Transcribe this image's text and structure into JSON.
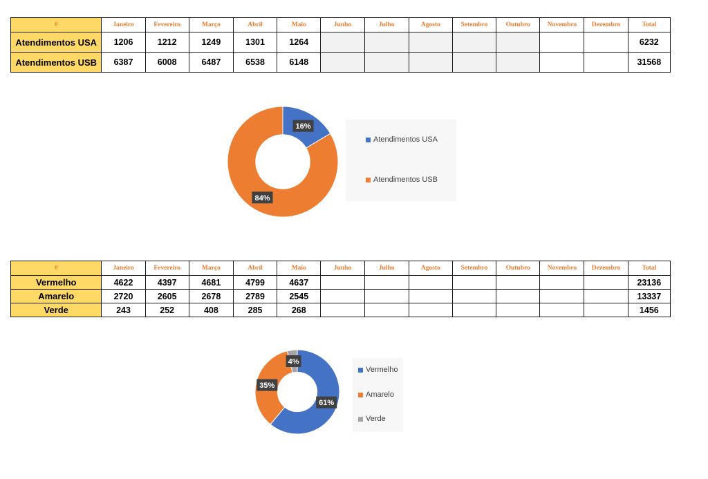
{
  "colors": {
    "blue": "#4472c4",
    "orange": "#ed7d31",
    "gray": "#a5a5a5",
    "header_fill": "#ffd966",
    "empty_fill": "#f2f2f2"
  },
  "table1": {
    "corner": "#",
    "months": [
      "Janeiro",
      "Fevereiro",
      "Março",
      "Abril",
      "Maio",
      "Junho",
      "Julho",
      "Agosto",
      "Setembro",
      "Outubro",
      "Novembro",
      "Dezembro"
    ],
    "total_label": "Total",
    "rows": [
      {
        "label": "Atendimentos USA",
        "values": [
          "1206",
          "1212",
          "1249",
          "1301",
          "1264",
          "",
          "",
          "",
          "",
          "",
          "",
          ""
        ],
        "total": "6232"
      },
      {
        "label": "Atendimentos USB",
        "values": [
          "6387",
          "6008",
          "6487",
          "6538",
          "6148",
          "",
          "",
          "",
          "",
          "",
          "",
          ""
        ],
        "total": "31568"
      }
    ]
  },
  "table2": {
    "corner": "#",
    "months": [
      "Janeiro",
      "Fevereiro",
      "Março",
      "Abril",
      "Maio",
      "Junho",
      "Julho",
      "Agosto",
      "Setembro",
      "Outubro",
      "Novembro",
      "Dezembro"
    ],
    "total_label": "Total",
    "rows": [
      {
        "label": "Vermelho",
        "values": [
          "4622",
          "4397",
          "4681",
          "4799",
          "4637",
          "",
          "",
          "",
          "",
          "",
          "",
          ""
        ],
        "total": "23136"
      },
      {
        "label": "Amarelo",
        "values": [
          "2720",
          "2605",
          "2678",
          "2789",
          "2545",
          "",
          "",
          "",
          "",
          "",
          "",
          ""
        ],
        "total": "13337"
      },
      {
        "label": "Verde",
        "values": [
          "243",
          "252",
          "408",
          "285",
          "268",
          "",
          "",
          "",
          "",
          "",
          "",
          ""
        ],
        "total": "1456"
      }
    ]
  },
  "chart_data": [
    {
      "type": "pie",
      "title": "",
      "categories": [
        "Atendimentos USA",
        "Atendimentos USB"
      ],
      "values": [
        6232,
        31568
      ],
      "data_labels": [
        "16%",
        "84%"
      ],
      "colors": [
        "#4472c4",
        "#ed7d31"
      ],
      "legend": "right"
    },
    {
      "type": "pie",
      "title": "",
      "categories": [
        "Vermelho",
        "Amarelo",
        "Verde"
      ],
      "values": [
        23136,
        13337,
        1456
      ],
      "data_labels": [
        "61%",
        "35%",
        "4%"
      ],
      "colors": [
        "#4472c4",
        "#ed7d31",
        "#a5a5a5"
      ],
      "legend": "right"
    }
  ]
}
